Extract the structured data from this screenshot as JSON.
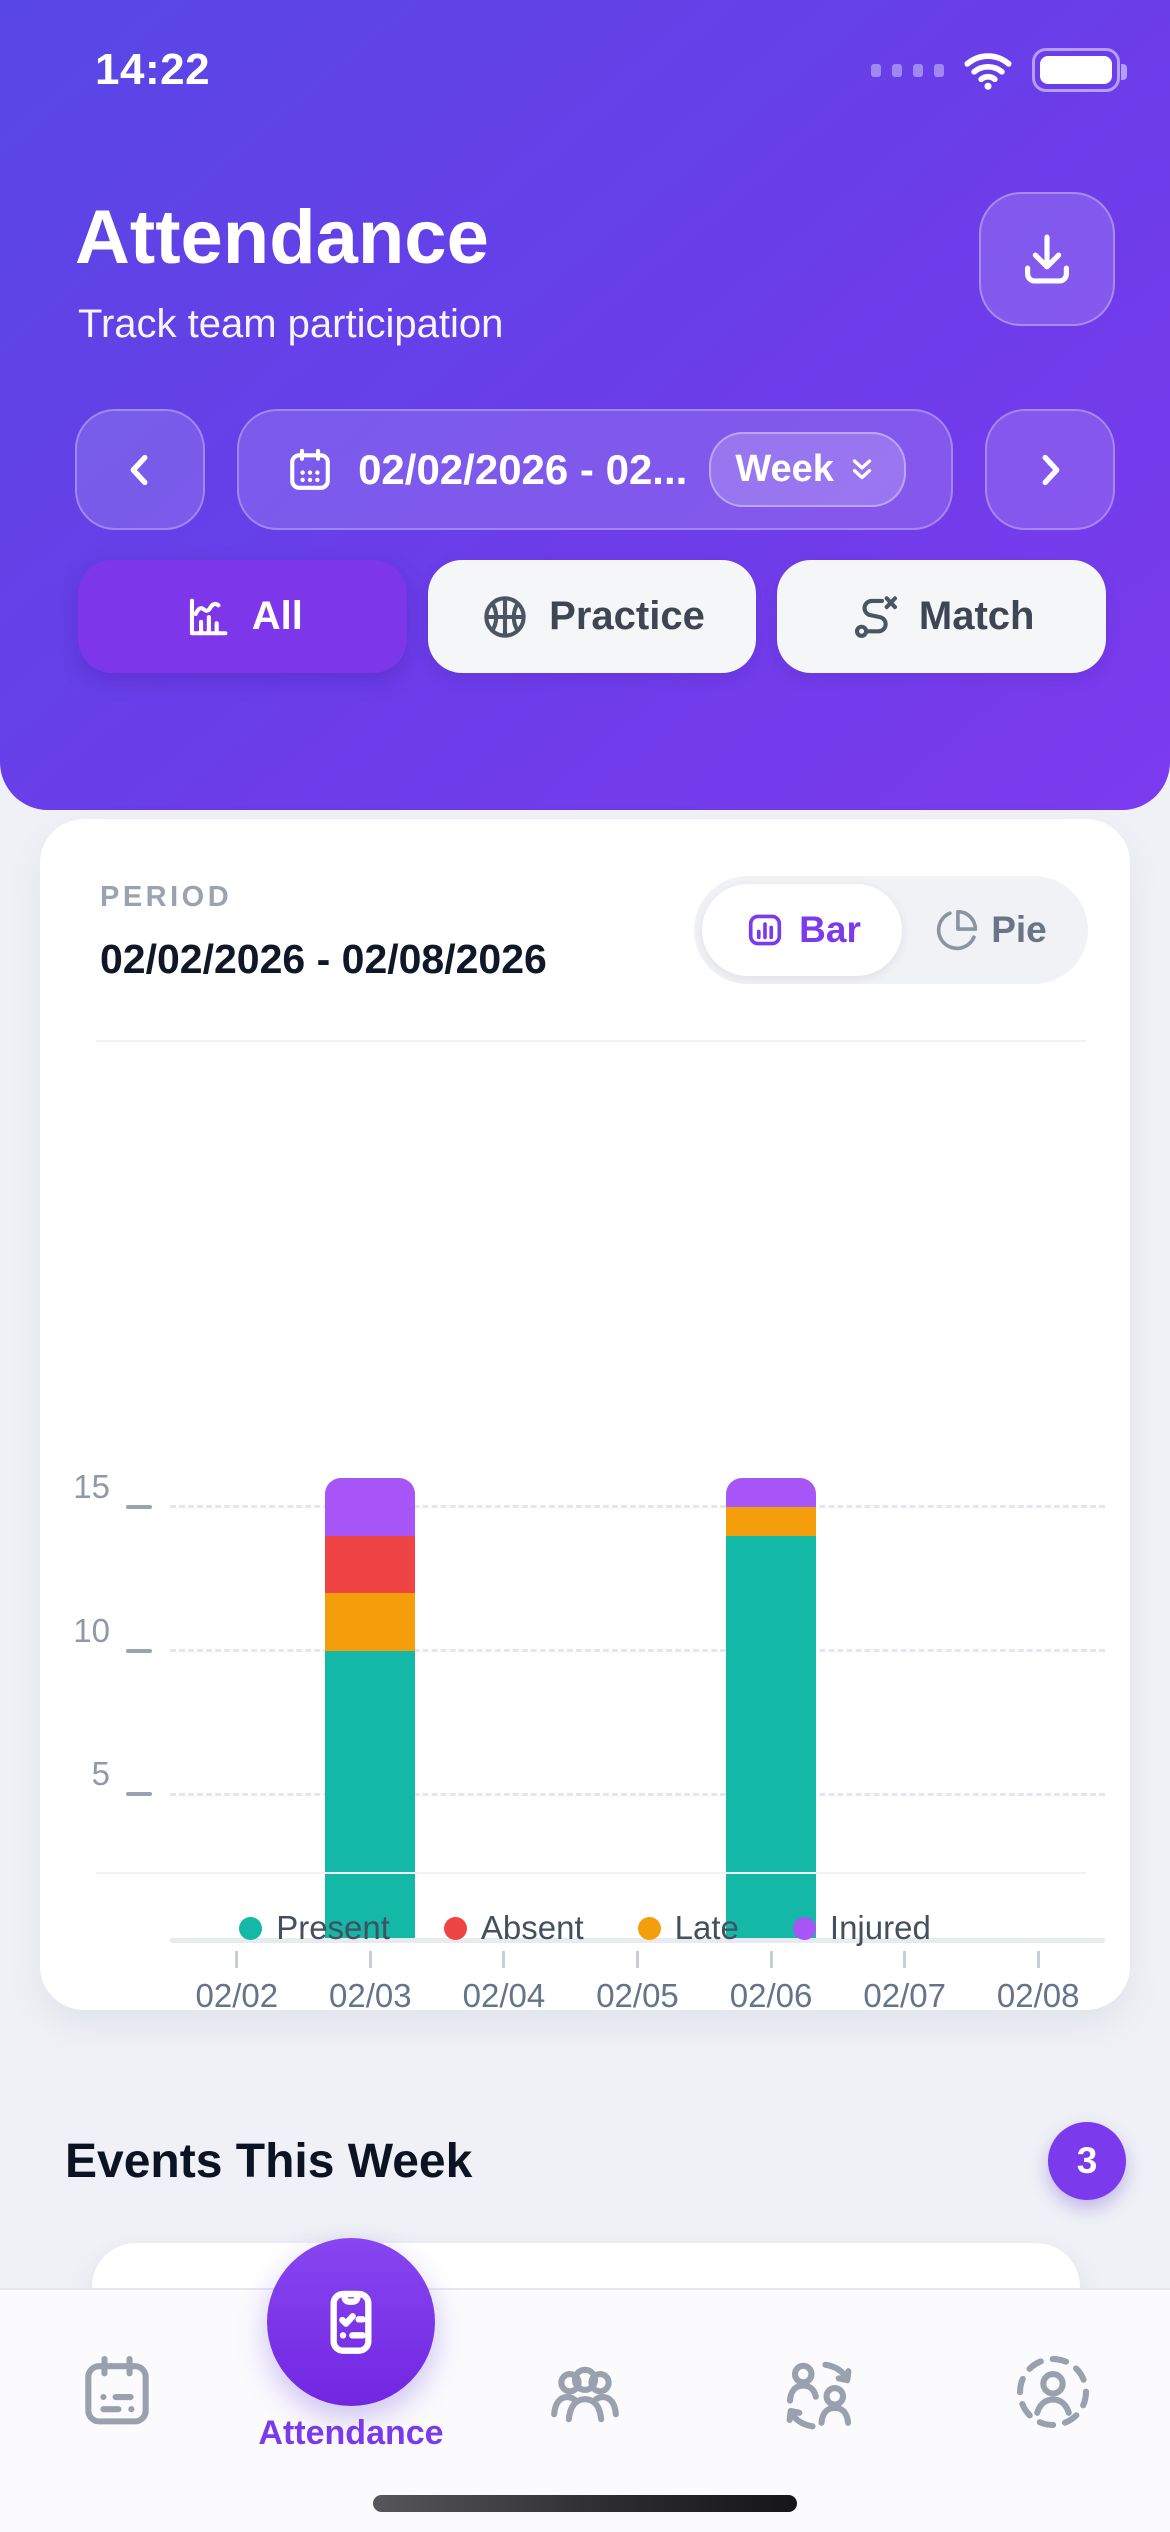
{
  "status_bar": {
    "time": "14:22"
  },
  "header": {
    "title": "Attendance",
    "subtitle": "Track team participation"
  },
  "date_nav": {
    "range_label": "02/02/2026 - 02...",
    "mode_label": "Week"
  },
  "filters": {
    "all_label": "All",
    "practice_label": "Practice",
    "match_label": "Match",
    "selected": "All"
  },
  "chart_card": {
    "period_label": "PERIOD",
    "period_value": "02/02/2026 - 02/08/2026",
    "view_toggle": {
      "bar_label": "Bar",
      "pie_label": "Pie",
      "selected": "Bar"
    }
  },
  "chart_data": {
    "type": "bar",
    "stacked": true,
    "categories": [
      "02/02",
      "02/03",
      "02/04",
      "02/05",
      "02/06",
      "02/07",
      "02/08"
    ],
    "series": [
      {
        "name": "Present",
        "color": "#14b8a6",
        "values": [
          0,
          10,
          0,
          0,
          14,
          0,
          0
        ]
      },
      {
        "name": "Late",
        "color": "#f59e0b",
        "values": [
          0,
          2,
          0,
          0,
          1,
          0,
          0
        ]
      },
      {
        "name": "Absent",
        "color": "#ef4444",
        "values": [
          0,
          2,
          0,
          0,
          0,
          0,
          0
        ]
      },
      {
        "name": "Injured",
        "color": "#a855f7",
        "values": [
          0,
          2,
          0,
          0,
          1,
          0,
          0
        ]
      }
    ],
    "legend_order": [
      "Present",
      "Absent",
      "Late",
      "Injured"
    ],
    "y_ticks": [
      5,
      10,
      15
    ],
    "ylim": [
      0,
      16
    ],
    "grid": "dashed-horizontal",
    "legend_position": "bottom"
  },
  "events": {
    "title": "Events This Week",
    "badge_count": "3"
  },
  "tab_bar": {
    "active_label": "Attendance",
    "items": [
      "schedule",
      "attendance",
      "team",
      "rotations",
      "profile"
    ]
  },
  "colors": {
    "accent": "#7c3aed",
    "header_gradient_start": "#5847e5",
    "header_gradient_end": "#7c3bee",
    "chip_selected": "#7d36e9",
    "present": "#14b8a6",
    "absent": "#ef4444",
    "late": "#f59e0b",
    "injured": "#a855f7"
  }
}
